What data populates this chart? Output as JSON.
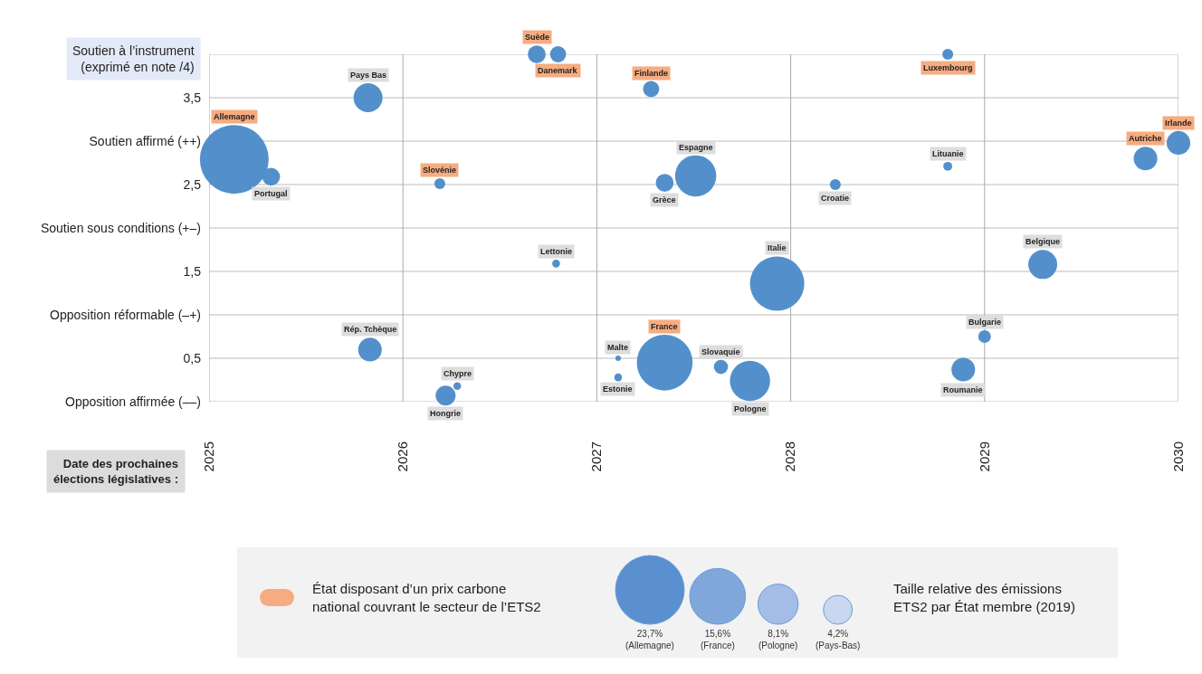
{
  "chart_data": {
    "type": "bubble",
    "xlabel": "Date des prochaines élections législatives :",
    "ylabel": "Soutien à l’instrument (exprimé en note /4)",
    "xlim": [
      2025,
      2030
    ],
    "xticks": [
      2025,
      2026,
      2027,
      2028,
      2029,
      2030
    ],
    "ylim": [
      0,
      4
    ],
    "yticks": [
      {
        "value": 0,
        "label": "Opposition affirmée (––)"
      },
      {
        "value": 0.5,
        "label": "0,5"
      },
      {
        "value": 1,
        "label": "Opposition réformable (–+)"
      },
      {
        "value": 1.5,
        "label": "1,5"
      },
      {
        "value": 2,
        "label": "Soutien sous conditions (+–)"
      },
      {
        "value": 2.5,
        "label": "2,5"
      },
      {
        "value": 3,
        "label": "Soutien affirmé (++)"
      },
      {
        "value": 3.5,
        "label": "3,5"
      },
      {
        "value": 4,
        "label": null
      }
    ],
    "grid": true,
    "series": [
      {
        "color": "#5390cb",
        "x": [
          2025.13,
          2026.69,
          2026.8,
          2026.19,
          2027.28,
          2028.81,
          2029.83,
          2030.0,
          2027.35
        ],
        "values": [
          2.79,
          4,
          4,
          2.51,
          3.6,
          4,
          2.8,
          2.98,
          0.45
        ],
        "sizes": [
          23.7,
          1.6,
          1.3,
          0.6,
          1.3,
          0.6,
          2.8,
          2.8,
          15.6
        ],
        "value_labels": [
          "Allemagne",
          "Suède",
          "Danemark",
          "Slovénie",
          "Finlande",
          "Luxembourg",
          "Autriche",
          "Irlande",
          "France"
        ]
      },
      {
        "color": "#5390cb",
        "x": [
          2025.32,
          2025.82,
          2026.79,
          2025.83,
          2026.28,
          2026.22,
          2027.51,
          2027.35,
          2028.23,
          2028.81,
          2027.93,
          2029.3,
          2029.0,
          2028.89,
          2027.11,
          2027.11,
          2027.64,
          2027.79
        ],
        "values": [
          2.59,
          3.5,
          1.59,
          0.6,
          0.18,
          0.07,
          2.6,
          2.52,
          2.5,
          2.71,
          1.36,
          1.58,
          0.75,
          0.37,
          0.5,
          0.28,
          0.4,
          0.24
        ],
        "sizes": [
          1.6,
          4.2,
          0.3,
          2.8,
          0.3,
          2.0,
          8.5,
          1.6,
          0.6,
          0.4,
          14.8,
          4.2,
          0.8,
          2.8,
          0.15,
          0.3,
          1.0,
          8.1
        ],
        "value_labels": [
          "Portugal",
          "Pays Bas",
          "Lettonie",
          "Rép. Tchèque",
          "Chypre",
          "Hongrie",
          "Espagne",
          "Grèce",
          "Croatie",
          "Lituanie",
          "Italie",
          "Belgique",
          "Bulgarie",
          "Roumanie",
          "Malte",
          "Estonie",
          "Slovaquie",
          "Pologne"
        ]
      }
    ],
    "size_legend": [
      {
        "value": 23.7,
        "label": "23,7% (Allemagne)"
      },
      {
        "value": 15.6,
        "label": "15,6% (France)"
      },
      {
        "value": 8.1,
        "label": "8,1% (Pologne)"
      },
      {
        "value": 4.2,
        "label": "4,2% (Pays-Bas)"
      }
    ],
    "annotations": [
      "État disposant d’un prix carbone national couvrant le secteur de l’ETS2",
      "Taille relative des émissions ETS2 par État membre (2019)"
    ]
  }
}
